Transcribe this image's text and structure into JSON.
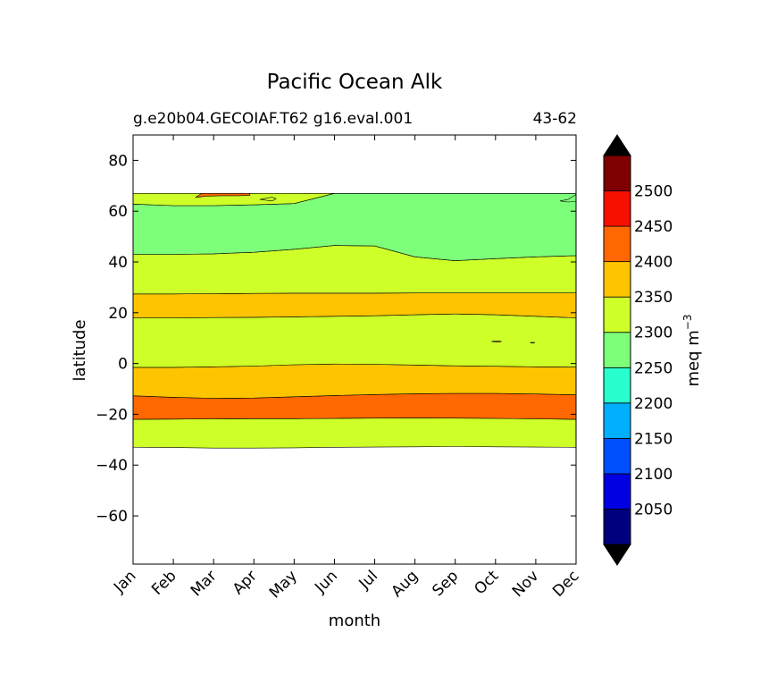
{
  "chart_data": {
    "type": "contour",
    "title": "Pacific Ocean Alk",
    "subtitle_left": "g.e20b04.GECOIAF.T62 g16.eval.001",
    "subtitle_right": "43-62",
    "xlabel": "month",
    "ylabel": "latitude",
    "colorbar_label": "meq m",
    "colorbar_label_exponent": "−3",
    "x_ticks": [
      "Jan",
      "Feb",
      "Mar",
      "Apr",
      "May",
      "Jun",
      "Jul",
      "Aug",
      "Sep",
      "Oct",
      "Nov",
      "Dec"
    ],
    "y_ticks": [
      80,
      60,
      40,
      20,
      0,
      -20,
      -40,
      -60
    ],
    "y_tick_labels": [
      "80",
      "60",
      "40",
      "20",
      "0",
      "−20",
      "−40",
      "−60"
    ],
    "ylim": [
      -79,
      90
    ],
    "xlim": [
      1,
      12
    ],
    "levels": [
      2000,
      2050,
      2100,
      2150,
      2200,
      2250,
      2300,
      2350,
      2400,
      2450,
      2500,
      2550
    ],
    "level_colors": [
      "#00007f",
      "#0000e3",
      "#0050ff",
      "#00b0ff",
      "#29ffce",
      "#7dff7a",
      "#ceff29",
      "#ffc400",
      "#ff6800",
      "#f70f00",
      "#7f0000"
    ],
    "extend": "both",
    "extend_min_color": "#000000",
    "extend_max_color": "#000000",
    "colorbar_tick_values": [
      2050,
      2100,
      2150,
      2200,
      2250,
      2300,
      2350,
      2400,
      2450,
      2500
    ],
    "colorbar_tick_labels": [
      "2050",
      "2100",
      "2150",
      "2200",
      "2250",
      "2300",
      "2350",
      "2400",
      "2450",
      "2500"
    ],
    "data_extent_lat": [
      -33,
      67
    ],
    "bands": [
      {
        "level_index": 6,
        "lower": [
          -33.0,
          -33.1,
          -33.3,
          -33.3,
          -33.2,
          -33.0,
          -32.9,
          -32.8,
          -32.7,
          -32.8,
          -32.9,
          -33.0
        ],
        "upper": [
          -22.0,
          -21.9,
          -21.8,
          -21.7,
          -21.7,
          -21.6,
          -21.5,
          -21.4,
          -21.5,
          -21.6,
          -21.8,
          -22.0
        ]
      },
      {
        "level_index": 8,
        "lower": [
          -22.0,
          -21.9,
          -21.8,
          -21.7,
          -21.7,
          -21.6,
          -21.5,
          -21.4,
          -21.5,
          -21.6,
          -21.8,
          -22.0
        ],
        "upper": [
          -12.7,
          -13.3,
          -13.7,
          -13.6,
          -13.1,
          -12.6,
          -12.2,
          -11.9,
          -11.8,
          -11.8,
          -12.0,
          -12.3
        ]
      },
      {
        "level_index": 7,
        "lower": [
          -12.7,
          -13.3,
          -13.7,
          -13.6,
          -13.1,
          -12.6,
          -12.2,
          -11.9,
          -11.8,
          -11.8,
          -12.0,
          -12.3
        ],
        "upper": [
          -1.5,
          -1.5,
          -1.3,
          -1.0,
          -0.5,
          -0.2,
          -0.3,
          -0.6,
          -0.9,
          -1.1,
          -1.3,
          -1.4
        ]
      },
      {
        "level_index": 6,
        "lower": [
          -1.5,
          -1.5,
          -1.3,
          -1.0,
          -0.5,
          -0.2,
          -0.3,
          -0.6,
          -0.9,
          -1.1,
          -1.3,
          -1.4
        ],
        "upper": [
          18.0,
          18.0,
          18.1,
          18.2,
          18.4,
          18.6,
          18.8,
          19.2,
          19.5,
          19.2,
          18.6,
          18.0
        ]
      },
      {
        "level_index": 7,
        "lower": [
          18.0,
          18.0,
          18.1,
          18.2,
          18.4,
          18.6,
          18.8,
          19.2,
          19.5,
          19.2,
          18.6,
          18.0
        ],
        "upper": [
          27.4,
          27.4,
          27.5,
          27.6,
          27.7,
          27.7,
          27.7,
          27.8,
          27.8,
          27.8,
          27.8,
          27.8
        ]
      },
      {
        "level_index": 6,
        "lower": [
          27.4,
          27.4,
          27.5,
          27.6,
          27.7,
          27.7,
          27.7,
          27.8,
          27.8,
          27.8,
          27.8,
          27.8
        ],
        "upper": [
          43.0,
          43.0,
          43.2,
          43.8,
          45.0,
          46.5,
          46.3,
          42.0,
          40.5,
          41.3,
          42.0,
          42.5
        ]
      },
      {
        "level_index": 5,
        "lower": [
          43.0,
          43.0,
          43.2,
          43.8,
          45.0,
          46.5,
          46.3,
          42.0,
          40.5,
          41.3,
          42.0,
          42.5
        ],
        "upper": [
          62.8,
          62.2,
          62.2,
          62.5,
          63.0,
          67.0,
          67.0,
          67.0,
          67.0,
          67.0,
          67.0,
          67.0
        ]
      },
      {
        "level_index": 6,
        "lower": [
          62.8,
          62.2,
          62.2,
          62.5,
          63.0,
          67.0,
          67.0,
          67.0,
          67.0,
          67.0,
          67.0,
          67.0
        ],
        "upper": [
          67.0,
          67.0,
          67.0,
          67.0,
          67.0,
          67.0,
          67.0,
          67.0,
          67.0,
          67.0,
          67.0,
          67.0
        ]
      }
    ],
    "features": [
      {
        "level_index": 8,
        "x": [
          2.55,
          2.8,
          3.2,
          3.6,
          3.9,
          3.9,
          3.4,
          2.7,
          2.55
        ],
        "y": [
          65.4,
          65.9,
          66.1,
          66.1,
          66.2,
          67.0,
          67.0,
          67.0,
          65.4
        ]
      },
      {
        "level_index": 6,
        "x": [
          4.15,
          4.45,
          4.55,
          4.45,
          4.15
        ],
        "y": [
          64.6,
          64.0,
          64.9,
          65.5,
          64.6
        ]
      },
      {
        "level_index": 5,
        "x": [
          11.6,
          11.8,
          12.0,
          12.0,
          11.8,
          11.6
        ],
        "y": [
          64.0,
          63.6,
          63.8,
          66.6,
          64.6,
          64.0
        ]
      },
      {
        "level_index": 7,
        "x": [
          9.9,
          10.05,
          10.15,
          10.05,
          9.9
        ],
        "y": [
          8.7,
          8.9,
          8.7,
          8.4,
          8.7
        ]
      },
      {
        "level_index": 7,
        "x": [
          10.92,
          10.98,
          10.92,
          10.86,
          10.92
        ],
        "y": [
          8.4,
          8.2,
          8.0,
          8.2,
          8.4
        ]
      }
    ]
  }
}
